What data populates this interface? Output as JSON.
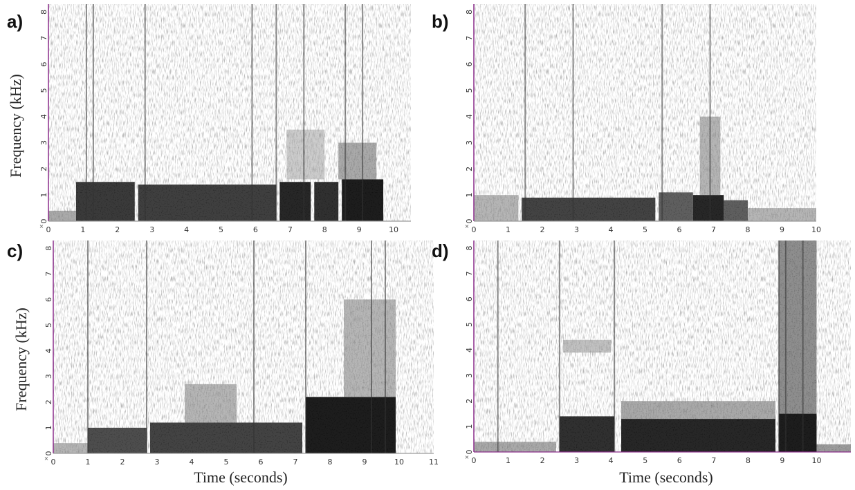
{
  "chart_data": [
    {
      "panel_label": "a)",
      "type": "heatmap",
      "xlabel": "",
      "ylabel": "Frequency (kHz)",
      "xlim": [
        0,
        10.5
      ],
      "ylim": [
        0,
        8.3
      ],
      "x_ticks": [
        "0",
        "1",
        "2",
        "3",
        "4",
        "5",
        "6",
        "7",
        "8",
        "9",
        "10"
      ],
      "y_ticks": [
        "0",
        "1",
        "2",
        "3",
        "4",
        "5",
        "6",
        "7",
        "8"
      ],
      "corner_label": "×",
      "energy_regions": [
        {
          "t0": 0.0,
          "t1": 0.8,
          "f0": 0,
          "f1": 0.4,
          "level": 0.35
        },
        {
          "t0": 0.8,
          "t1": 2.5,
          "f0": 0,
          "f1": 1.5,
          "level": 0.75
        },
        {
          "t0": 2.6,
          "t1": 6.6,
          "f0": 0,
          "f1": 1.4,
          "level": 0.72
        },
        {
          "t0": 6.7,
          "t1": 7.6,
          "f0": 0,
          "f1": 1.5,
          "level": 0.85
        },
        {
          "t0": 7.7,
          "t1": 8.4,
          "f0": 0,
          "f1": 1.5,
          "level": 0.8
        },
        {
          "t0": 8.5,
          "t1": 9.7,
          "f0": 0,
          "f1": 1.6,
          "level": 0.9
        },
        {
          "t0": 8.4,
          "t1": 9.5,
          "f0": 1.6,
          "f1": 3.0,
          "level": 0.35
        },
        {
          "t0": 6.9,
          "t1": 8.0,
          "f0": 1.6,
          "f1": 3.5,
          "level": 0.2
        }
      ],
      "vertical_streaks": [
        1.1,
        1.3,
        2.8,
        5.9,
        6.6,
        7.4,
        8.6,
        9.1
      ]
    },
    {
      "panel_label": "b)",
      "type": "heatmap",
      "xlabel": "",
      "ylabel": "",
      "xlim": [
        0,
        10
      ],
      "ylim": [
        0,
        8.3
      ],
      "x_ticks": [
        "0",
        "1",
        "2",
        "3",
        "4",
        "5",
        "6",
        "7",
        "8",
        "9",
        "10"
      ],
      "y_ticks": [
        "0",
        "1",
        "2",
        "3",
        "4",
        "5",
        "6",
        "7",
        "8"
      ],
      "corner_label": "×",
      "energy_regions": [
        {
          "t0": 0.0,
          "t1": 1.3,
          "f0": 0,
          "f1": 1.0,
          "level": 0.3
        },
        {
          "t0": 1.4,
          "t1": 5.3,
          "f0": 0,
          "f1": 0.9,
          "level": 0.7
        },
        {
          "t0": 5.4,
          "t1": 6.4,
          "f0": 0,
          "f1": 1.1,
          "level": 0.6
        },
        {
          "t0": 6.4,
          "t1": 7.3,
          "f0": 0,
          "f1": 1.0,
          "level": 0.85
        },
        {
          "t0": 7.3,
          "t1": 8.0,
          "f0": 0,
          "f1": 0.8,
          "level": 0.6
        },
        {
          "t0": 8.0,
          "t1": 10.0,
          "f0": 0,
          "f1": 0.5,
          "level": 0.3
        },
        {
          "t0": 6.6,
          "t1": 7.2,
          "f0": 1.0,
          "f1": 4.0,
          "level": 0.3
        }
      ],
      "vertical_streaks": [
        1.5,
        2.9,
        5.5,
        6.9
      ]
    },
    {
      "panel_label": "c)",
      "type": "heatmap",
      "xlabel": "Time (seconds)",
      "ylabel": "Frequency (kHz)",
      "xlim": [
        0,
        11
      ],
      "ylim": [
        0,
        8.3
      ],
      "x_ticks": [
        "0",
        "1",
        "2",
        "3",
        "4",
        "5",
        "6",
        "7",
        "8",
        "9",
        "10",
        "11"
      ],
      "y_ticks": [
        "0",
        "1",
        "2",
        "3",
        "4",
        "5",
        "6",
        "7",
        "8"
      ],
      "corner_label": "×",
      "energy_regions": [
        {
          "t0": 0.0,
          "t1": 1.0,
          "f0": 0,
          "f1": 0.4,
          "level": 0.3
        },
        {
          "t0": 1.0,
          "t1": 2.7,
          "f0": 0,
          "f1": 1.0,
          "level": 0.65
        },
        {
          "t0": 2.8,
          "t1": 7.2,
          "f0": 0,
          "f1": 1.2,
          "level": 0.7
        },
        {
          "t0": 3.8,
          "t1": 5.3,
          "f0": 1.2,
          "f1": 2.7,
          "level": 0.3
        },
        {
          "t0": 7.3,
          "t1": 9.9,
          "f0": 0,
          "f1": 2.2,
          "level": 0.9
        },
        {
          "t0": 8.4,
          "t1": 9.9,
          "f0": 2.2,
          "f1": 6.0,
          "level": 0.3
        }
      ],
      "vertical_streaks": [
        1.0,
        2.7,
        5.8,
        7.3,
        9.2,
        9.6
      ]
    },
    {
      "panel_label": "d)",
      "type": "heatmap",
      "xlabel": "Time (seconds)",
      "ylabel": "",
      "xlim": [
        0,
        11
      ],
      "ylim": [
        0,
        8.3
      ],
      "x_ticks": [
        "0",
        "1",
        "2",
        "3",
        "4",
        "5",
        "6",
        "7",
        "8",
        "9",
        "10"
      ],
      "y_ticks": [
        "0",
        "1",
        "2",
        "3",
        "4",
        "5",
        "6",
        "7",
        "8"
      ],
      "corner_label": "×",
      "energy_regions": [
        {
          "t0": 0.0,
          "t1": 2.4,
          "f0": 0,
          "f1": 0.4,
          "level": 0.35
        },
        {
          "t0": 2.5,
          "t1": 4.1,
          "f0": 0,
          "f1": 1.4,
          "level": 0.8
        },
        {
          "t0": 4.3,
          "t1": 8.8,
          "f0": 0,
          "f1": 1.3,
          "level": 0.85
        },
        {
          "t0": 4.3,
          "t1": 8.8,
          "f0": 1.3,
          "f1": 2.0,
          "level": 0.35
        },
        {
          "t0": 8.9,
          "t1": 10.0,
          "f0": 0,
          "f1": 8.3,
          "level": 0.45
        },
        {
          "t0": 8.9,
          "t1": 10.0,
          "f0": 0,
          "f1": 1.5,
          "level": 0.9
        },
        {
          "t0": 2.6,
          "t1": 4.0,
          "f0": 3.9,
          "f1": 4.4,
          "level": 0.25
        },
        {
          "t0": 10.0,
          "t1": 11.0,
          "f0": 0,
          "f1": 0.3,
          "level": 0.4
        }
      ],
      "vertical_streaks": [
        0.7,
        2.5,
        4.1,
        8.9,
        9.1,
        9.6
      ]
    }
  ],
  "style": {
    "ink_color": "#111111",
    "axis_accent_color": "#8b2d8b",
    "background_color": "#ffffff"
  }
}
